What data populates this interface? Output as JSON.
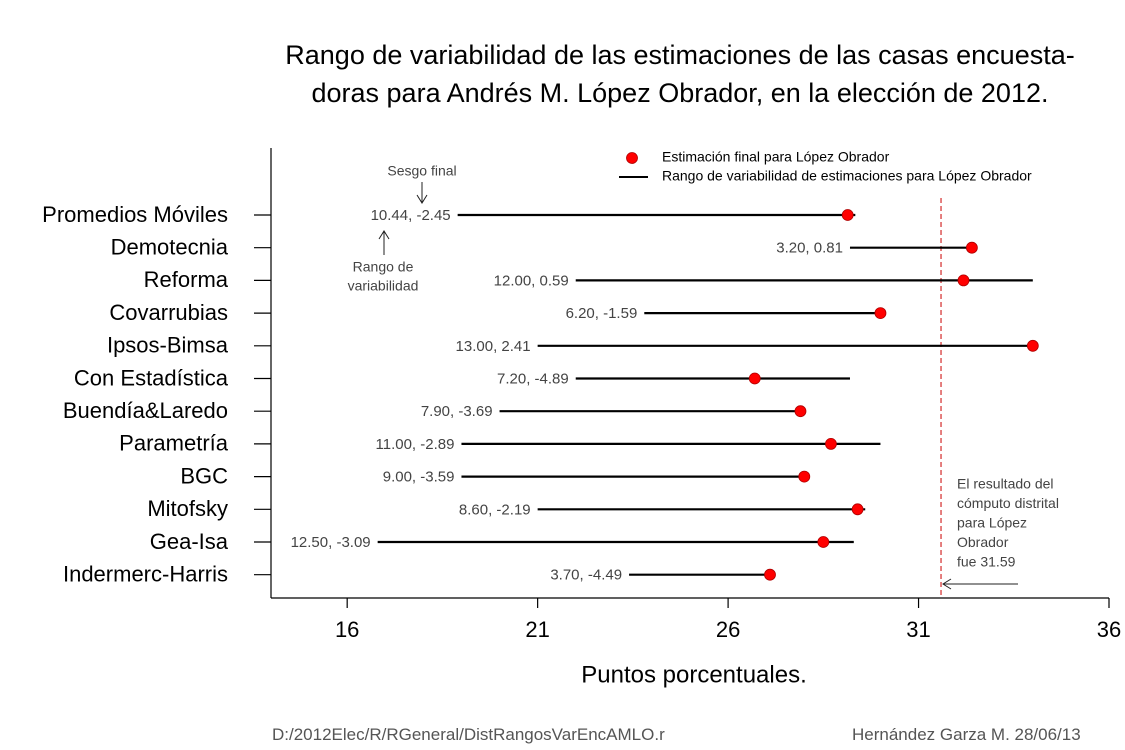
{
  "chart_data": {
    "type": "range-dot",
    "title_line1": "Rango de variabilidad de las estimaciones de las casas encuesta-",
    "title_line2": "doras para Andrés M. López Obrador, en la elección de 2012.",
    "xlabel": "Puntos porcentuales.",
    "xlim": [
      14,
      36
    ],
    "xticks": [
      16,
      21,
      26,
      31,
      36
    ],
    "reference_value": 31.59,
    "legend": {
      "point_label": "Estimación final para López Obrador",
      "line_label": "Rango de variabilidad de estimaciones para López Obrador",
      "placement": "top-right"
    },
    "annotations": {
      "bias_label": "Sesgo final",
      "range_label_1": "Rango de",
      "range_label_2": "variabilidad",
      "result_lines": [
        "El resultado del",
        "cómputo distrital",
        "para López",
        "Obrador",
        "fue 31.59"
      ]
    },
    "series": [
      {
        "name": "Promedios Móviles",
        "range_min": 18.9,
        "range_max": 29.34,
        "final": 29.14,
        "label": "10.44, -2.45"
      },
      {
        "name": "Demotecnia",
        "range_min": 29.2,
        "range_max": 32.4,
        "final": 32.4,
        "label": "3.20, 0.81"
      },
      {
        "name": "Reforma",
        "range_min": 22.0,
        "range_max": 34.0,
        "final": 32.18,
        "label": "12.00, 0.59"
      },
      {
        "name": "Covarrubias",
        "range_min": 23.8,
        "range_max": 30.0,
        "final": 30.0,
        "label": "6.20, -1.59"
      },
      {
        "name": "Ipsos-Bimsa",
        "range_min": 21.0,
        "range_max": 34.0,
        "final": 34.0,
        "label": "13.00, 2.41"
      },
      {
        "name": "Con Estadística",
        "range_min": 22.0,
        "range_max": 29.2,
        "final": 26.7,
        "label": "7.20, -4.89"
      },
      {
        "name": "Buendía&Laredo",
        "range_min": 20.0,
        "range_max": 27.9,
        "final": 27.9,
        "label": "7.90, -3.69"
      },
      {
        "name": "Parametría",
        "range_min": 19.0,
        "range_max": 30.0,
        "final": 28.7,
        "label": "11.00, -2.89"
      },
      {
        "name": "BGC",
        "range_min": 19.0,
        "range_max": 28.0,
        "final": 28.0,
        "label": "9.00, -3.59"
      },
      {
        "name": "Mitofsky",
        "range_min": 21.0,
        "range_max": 29.6,
        "final": 29.4,
        "label": "8.60, -2.19"
      },
      {
        "name": "Gea-Isa",
        "range_min": 16.8,
        "range_max": 29.3,
        "final": 28.5,
        "label": "12.50, -3.09"
      },
      {
        "name": "Indermerc-Harris",
        "range_min": 23.4,
        "range_max": 27.1,
        "final": 27.1,
        "label": "3.70, -4.49"
      }
    ],
    "colors": {
      "point": "#ff0000",
      "range_line": "#000000",
      "reference_line": "#cc0000",
      "annotation_text": "#444444"
    }
  },
  "footer": {
    "path": "D:/2012Elec/R/RGeneral/DistRangosVarEncAMLO.r",
    "author_date": "Hernández Garza M.  28/06/13"
  }
}
